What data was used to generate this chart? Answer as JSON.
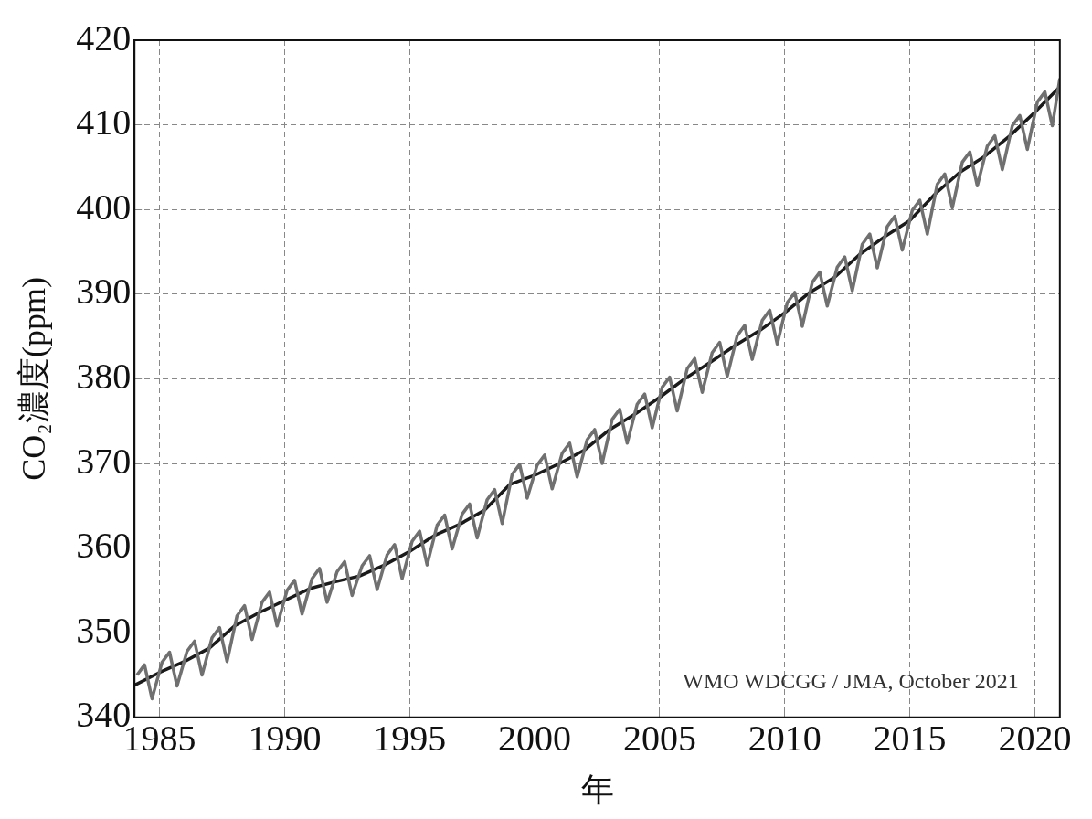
{
  "chart_data": {
    "type": "line",
    "xlabel": "年",
    "ylabel": "CO₂濃度(ppm)",
    "xlim": [
      1984,
      2021
    ],
    "xticks": [
      1985,
      1990,
      1995,
      2000,
      2005,
      2010,
      2015,
      2020
    ],
    "ylim": [
      340,
      420
    ],
    "yticks": [
      340,
      350,
      360,
      370,
      380,
      390,
      400,
      410,
      420
    ],
    "grid": true,
    "legend": false,
    "marker": "none",
    "line_style": "solid",
    "annotations": [
      "WMO WDCGG / JMA, October 2021"
    ],
    "series": [
      {
        "color": "#707070",
        "x": [
          1984.1,
          1984.4,
          1984.7,
          1985.1,
          1985.4,
          1985.7,
          1986.1,
          1986.4,
          1986.7,
          1987.1,
          1987.4,
          1987.7,
          1988.1,
          1988.4,
          1988.7,
          1989.1,
          1989.4,
          1989.7,
          1990.1,
          1990.4,
          1990.7,
          1991.1,
          1991.4,
          1991.7,
          1992.1,
          1992.4,
          1992.7,
          1993.1,
          1993.4,
          1993.7,
          1994.1,
          1994.4,
          1994.7,
          1995.1,
          1995.4,
          1995.7,
          1996.1,
          1996.4,
          1996.7,
          1997.1,
          1997.4,
          1997.7,
          1998.1,
          1998.4,
          1998.7,
          1999.1,
          1999.4,
          1999.7,
          2000.1,
          2000.4,
          2000.7,
          2001.1,
          2001.4,
          2001.7,
          2002.1,
          2002.4,
          2002.7,
          2003.1,
          2003.4,
          2003.7,
          2004.1,
          2004.4,
          2004.7,
          2005.1,
          2005.4,
          2005.7,
          2006.1,
          2006.4,
          2006.7,
          2007.1,
          2007.4,
          2007.7,
          2008.1,
          2008.4,
          2008.7,
          2009.1,
          2009.4,
          2009.7,
          2010.1,
          2010.4,
          2010.7,
          2011.1,
          2011.4,
          2011.7,
          2012.1,
          2012.4,
          2012.7,
          2013.1,
          2013.4,
          2013.7,
          2014.1,
          2014.4,
          2014.7,
          2015.1,
          2015.4,
          2015.7,
          2016.1,
          2016.4,
          2016.7,
          2017.1,
          2017.4,
          2017.7,
          2018.1,
          2018.4,
          2018.7,
          2019.1,
          2019.4,
          2019.7,
          2020.1,
          2020.4,
          2020.7,
          2021
        ],
        "values": [
          345.0,
          346.2,
          342.2,
          346.5,
          347.7,
          343.7,
          347.8,
          349.0,
          345.0,
          349.4,
          350.6,
          346.6,
          352.0,
          353.2,
          349.2,
          353.6,
          354.8,
          350.8,
          355.0,
          356.2,
          352.2,
          356.4,
          357.6,
          353.6,
          357.2,
          358.4,
          354.4,
          357.9,
          359.1,
          355.1,
          359.2,
          360.4,
          356.4,
          360.8,
          362.0,
          358.0,
          362.7,
          363.9,
          359.9,
          364.0,
          365.2,
          361.2,
          365.7,
          366.9,
          362.9,
          368.7,
          369.9,
          365.9,
          369.8,
          371.0,
          367.0,
          371.2,
          372.4,
          368.4,
          372.8,
          374.0,
          370.0,
          375.2,
          376.4,
          372.4,
          377.0,
          378.2,
          374.2,
          379.0,
          380.2,
          376.2,
          381.2,
          382.4,
          378.4,
          383.1,
          384.3,
          380.3,
          385.1,
          386.3,
          382.3,
          386.9,
          388.1,
          384.1,
          389.0,
          390.2,
          386.2,
          391.4,
          392.6,
          388.6,
          393.2,
          394.4,
          390.4,
          395.9,
          397.1,
          393.1,
          398.0,
          399.2,
          395.2,
          399.9,
          401.1,
          397.1,
          403.0,
          404.2,
          400.2,
          405.6,
          406.8,
          402.8,
          407.5,
          408.7,
          404.7,
          409.9,
          411.1,
          407.1,
          412.7,
          413.9,
          409.9,
          415.5
        ]
      },
      {
        "color": "#1a1a1a",
        "x": [
          1984,
          1985,
          1986,
          1987,
          1988,
          1989,
          1990,
          1991,
          1992,
          1993,
          1994,
          1995,
          1996,
          1997,
          1998,
          1999,
          2000,
          2001,
          2002,
          2003,
          2004,
          2005,
          2006,
          2007,
          2008,
          2009,
          2010,
          2011,
          2012,
          2013,
          2014,
          2015,
          2016,
          2017,
          2018,
          2019,
          2020,
          2021
        ],
        "values": [
          343.8,
          345.3,
          346.6,
          348.2,
          350.8,
          352.4,
          353.8,
          355.2,
          356.0,
          356.7,
          358.0,
          359.6,
          361.5,
          362.8,
          364.5,
          367.5,
          368.6,
          370.0,
          371.6,
          374.0,
          375.8,
          377.8,
          380.0,
          381.9,
          383.9,
          385.7,
          387.8,
          390.2,
          392.0,
          394.7,
          396.8,
          398.7,
          401.8,
          404.4,
          406.3,
          408.7,
          411.5,
          414.5
        ]
      }
    ]
  }
}
